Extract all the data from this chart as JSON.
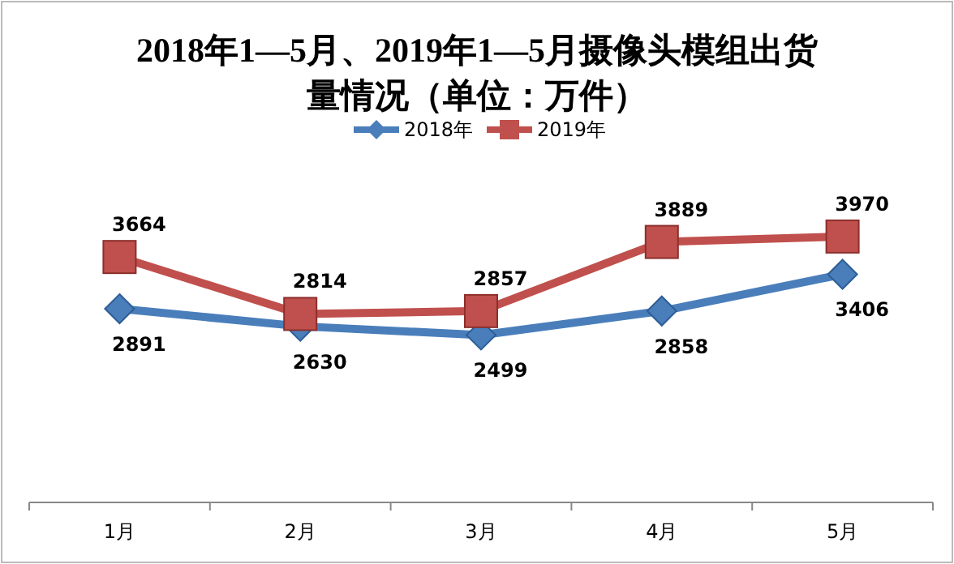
{
  "chart_data": {
    "type": "line",
    "title": "2018年1—5月、2019年1—5月摄像头模组出货量情况（单位：万件）",
    "categories": [
      "1月",
      "2月",
      "3月",
      "4月",
      "5月"
    ],
    "series": [
      {
        "name": "2018年",
        "color": "#4a7ebb",
        "marker": "diamond",
        "values": [
          2891,
          2630,
          2499,
          2858,
          3406
        ]
      },
      {
        "name": "2019年",
        "color": "#c0504d",
        "marker": "square",
        "values": [
          3664,
          2814,
          2857,
          3889,
          3970
        ]
      }
    ],
    "data_labels": true,
    "legend": "top"
  }
}
